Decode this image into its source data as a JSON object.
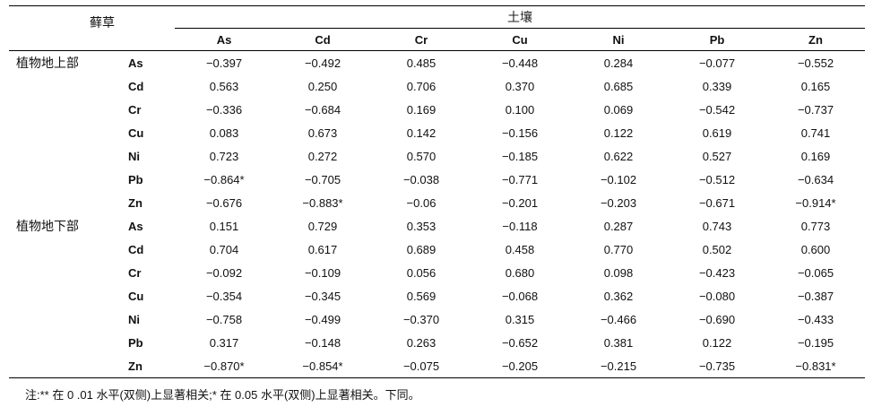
{
  "header": {
    "moss_label": "藓草",
    "soil_label": "土壤",
    "soil_columns": [
      "As",
      "Cd",
      "Cr",
      "Cu",
      "Ni",
      "Pb",
      "Zn"
    ]
  },
  "groups": [
    {
      "label": "植物地上部",
      "rows": [
        {
          "metal": "As",
          "values": [
            "−0.397",
            "−0.492",
            "0.485",
            "−0.448",
            "0.284",
            "−0.077",
            "−0.552"
          ]
        },
        {
          "metal": "Cd",
          "values": [
            "0.563",
            "0.250",
            "0.706",
            "0.370",
            "0.685",
            "0.339",
            "0.165"
          ]
        },
        {
          "metal": "Cr",
          "values": [
            "−0.336",
            "−0.684",
            "0.169",
            "0.100",
            "0.069",
            "−0.542",
            "−0.737"
          ]
        },
        {
          "metal": "Cu",
          "values": [
            "0.083",
            "0.673",
            "0.142",
            "−0.156",
            "0.122",
            "0.619",
            "0.741"
          ]
        },
        {
          "metal": "Ni",
          "values": [
            "0.723",
            "0.272",
            "0.570",
            "−0.185",
            "0.622",
            "0.527",
            "0.169"
          ]
        },
        {
          "metal": "Pb",
          "values": [
            "−0.864*",
            "−0.705",
            "−0.038",
            "−0.771",
            "−0.102",
            "−0.512",
            "−0.634"
          ]
        },
        {
          "metal": "Zn",
          "values": [
            "−0.676",
            "−0.883*",
            "−0.06",
            "−0.201",
            "−0.203",
            "−0.671",
            "−0.914*"
          ]
        }
      ]
    },
    {
      "label": "植物地下部",
      "rows": [
        {
          "metal": "As",
          "values": [
            "0.151",
            "0.729",
            "0.353",
            "−0.118",
            "0.287",
            "0.743",
            "0.773"
          ]
        },
        {
          "metal": "Cd",
          "values": [
            "0.704",
            "0.617",
            "0.689",
            "0.458",
            "0.770",
            "0.502",
            "0.600"
          ]
        },
        {
          "metal": "Cr",
          "values": [
            "−0.092",
            "−0.109",
            "0.056",
            "0.680",
            "0.098",
            "−0.423",
            "−0.065"
          ]
        },
        {
          "metal": "Cu",
          "values": [
            "−0.354",
            "−0.345",
            "0.569",
            "−0.068",
            "0.362",
            "−0.080",
            "−0.387"
          ]
        },
        {
          "metal": "Ni",
          "values": [
            "−0.758",
            "−0.499",
            "−0.370",
            "0.315",
            "−0.466",
            "−0.690",
            "−0.433"
          ]
        },
        {
          "metal": "Pb",
          "values": [
            "0.317",
            "−0.148",
            "0.263",
            "−0.652",
            "0.381",
            "0.122",
            "−0.195"
          ]
        },
        {
          "metal": "Zn",
          "values": [
            "−0.870*",
            "−0.854*",
            "−0.075",
            "−0.205",
            "−0.215",
            "−0.735",
            "−0.831*"
          ]
        }
      ]
    }
  ],
  "note": "注:** 在 0 .01 水平(双侧)上显著相关;* 在 0.05 水平(双侧)上显著相关。下同。"
}
